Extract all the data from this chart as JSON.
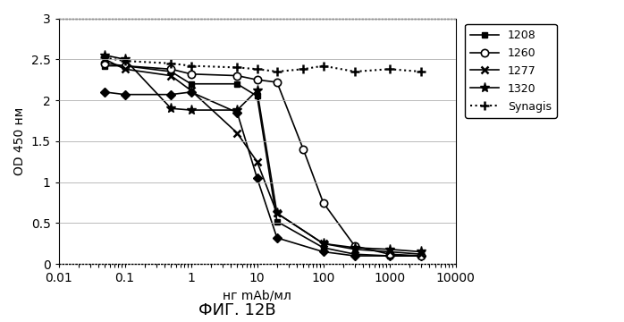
{
  "title": "ФИГ. 12В",
  "xlabel": "нг mAb/мл",
  "ylabel": "OD 450 нм",
  "xlim": [
    0.01,
    10000
  ],
  "ylim": [
    0,
    3
  ],
  "yticks": [
    0,
    0.5,
    1,
    1.5,
    2,
    2.5,
    3
  ],
  "series": {
    "sbase": {
      "label": "",
      "marker": "D",
      "linestyle": "-",
      "color": "#000000",
      "markersize": 5,
      "x": [
        0.05,
        0.1,
        0.5,
        1,
        5,
        10,
        20,
        100,
        300,
        1000,
        3000
      ],
      "y": [
        2.1,
        2.07,
        2.07,
        2.1,
        1.85,
        1.05,
        0.32,
        0.15,
        0.1,
        0.1,
        0.1
      ]
    },
    "s1208": {
      "label": "1208",
      "marker": "s",
      "linestyle": "-",
      "color": "#000000",
      "markersize": 5,
      "x": [
        0.05,
        0.1,
        0.5,
        1,
        5,
        10,
        20,
        100,
        300,
        1000,
        3000
      ],
      "y": [
        2.42,
        2.42,
        2.35,
        2.2,
        2.2,
        2.05,
        0.52,
        0.2,
        0.12,
        0.1,
        0.1
      ]
    },
    "s1260": {
      "label": "1260",
      "marker": "o",
      "linestyle": "-",
      "color": "#000000",
      "markersize": 6,
      "x": [
        0.05,
        0.1,
        0.5,
        1,
        5,
        10,
        20,
        50,
        100,
        300,
        1000,
        3000
      ],
      "y": [
        2.45,
        2.42,
        2.38,
        2.32,
        2.3,
        2.25,
        2.22,
        1.4,
        0.75,
        0.22,
        0.12,
        0.1
      ]
    },
    "s1277": {
      "label": "1277",
      "marker": "x",
      "linestyle": "-",
      "color": "#000000",
      "markersize": 6,
      "x": [
        0.05,
        0.1,
        0.5,
        1,
        5,
        10,
        20,
        100,
        300,
        1000,
        3000
      ],
      "y": [
        2.5,
        2.38,
        2.3,
        2.12,
        1.6,
        1.25,
        0.62,
        0.25,
        0.18,
        0.15,
        0.12
      ]
    },
    "s1320": {
      "label": "1320",
      "marker": "*",
      "linestyle": "-",
      "color": "#000000",
      "markersize": 8,
      "x": [
        0.05,
        0.1,
        0.5,
        1,
        5,
        10,
        20,
        100,
        300,
        1000,
        3000
      ],
      "y": [
        2.55,
        2.5,
        1.9,
        1.88,
        1.88,
        2.12,
        0.62,
        0.25,
        0.2,
        0.18,
        0.15
      ]
    },
    "synagis": {
      "label": "Synagis",
      "marker": "+",
      "linestyle": ":",
      "color": "#000000",
      "markersize": 7,
      "x": [
        0.05,
        0.1,
        0.5,
        1,
        5,
        10,
        20,
        50,
        100,
        300,
        1000,
        3000
      ],
      "y": [
        2.52,
        2.48,
        2.45,
        2.42,
        2.4,
        2.38,
        2.35,
        2.38,
        2.42,
        2.35,
        2.38,
        2.35
      ]
    }
  },
  "background_color": "#ffffff",
  "grid_color": "#b0b0b0"
}
